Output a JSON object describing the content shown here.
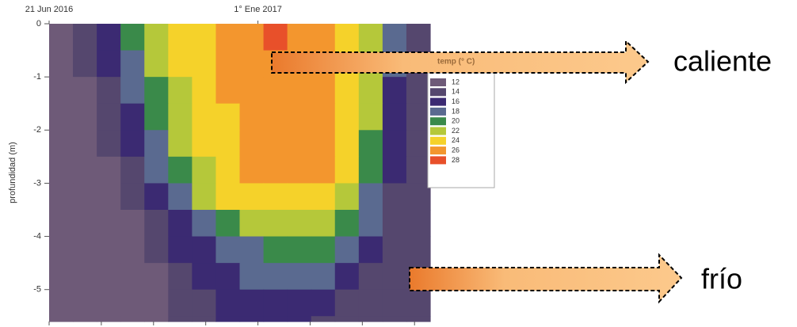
{
  "chart_data": {
    "type": "contour",
    "y_label": "profundidad (m)",
    "xlim": [
      0,
      7.3
    ],
    "xticks": [
      {
        "value": 0,
        "label": "21 Jun 2016"
      },
      {
        "value": 4,
        "label": "1° Ene 2017"
      }
    ],
    "minor_xticks": [
      1,
      2,
      3,
      5,
      6,
      7
    ],
    "ylim": [
      -5.6,
      0
    ],
    "yticks": [
      0,
      -1,
      -2,
      -3,
      -4,
      -5
    ],
    "y": [
      0,
      -0.5,
      -1,
      -1.5,
      -2,
      -2.5,
      -3,
      -3.5,
      -4,
      -4.5,
      -5,
      -5.5
    ],
    "z": [
      [
        13,
        14,
        17,
        20,
        23,
        24,
        25,
        26,
        26,
        28,
        27,
        26,
        25,
        22,
        18,
        14
      ],
      [
        13,
        14,
        16,
        19,
        22,
        24,
        25,
        26,
        26,
        27,
        27,
        26,
        25,
        22,
        18,
        14
      ],
      [
        13,
        13,
        15,
        18,
        21,
        23,
        25,
        26,
        26,
        26,
        26,
        26,
        25,
        22,
        17,
        14
      ],
      [
        13,
        13,
        15,
        17,
        20,
        23,
        24,
        25,
        26,
        26,
        26,
        26,
        25,
        22,
        17,
        14
      ],
      [
        13,
        13,
        14,
        16,
        19,
        22,
        24,
        25,
        26,
        26,
        26,
        26,
        25,
        21,
        16,
        14
      ],
      [
        13,
        13,
        13,
        15,
        18,
        21,
        23,
        25,
        26,
        26,
        26,
        26,
        24,
        20,
        16,
        14
      ],
      [
        13,
        13,
        13,
        14,
        16,
        19,
        22,
        24,
        25,
        25,
        25,
        25,
        23,
        19,
        15,
        14
      ],
      [
        13,
        13,
        13,
        13,
        15,
        17,
        19,
        21,
        23,
        23,
        23,
        22,
        21,
        18,
        15,
        14
      ],
      [
        13,
        13,
        13,
        13,
        14,
        16,
        17,
        18,
        19,
        20,
        20,
        21,
        19,
        16,
        15,
        14
      ],
      [
        13,
        13,
        13,
        13,
        13,
        15,
        16,
        17,
        18,
        18,
        19,
        19,
        16,
        15,
        14,
        14
      ],
      [
        13,
        13,
        13,
        13,
        13,
        14,
        15,
        16,
        17,
        17,
        17,
        16,
        15,
        14,
        14,
        14
      ],
      [
        13,
        13,
        13,
        13,
        13,
        14,
        15,
        16,
        16,
        16,
        16,
        15,
        14,
        14,
        14,
        14
      ]
    ],
    "legend": {
      "title": "temp (° C)",
      "levels": [
        12,
        14,
        16,
        18,
        20,
        22,
        24,
        26,
        28
      ],
      "colors": [
        "#6e5a78",
        "#55476e",
        "#3b2a72",
        "#5a6a90",
        "#3a8a4a",
        "#b5c83a",
        "#f5d22a",
        "#f3962e",
        "#e8502a"
      ]
    },
    "annotations": [
      "caliente",
      "frío"
    ]
  }
}
